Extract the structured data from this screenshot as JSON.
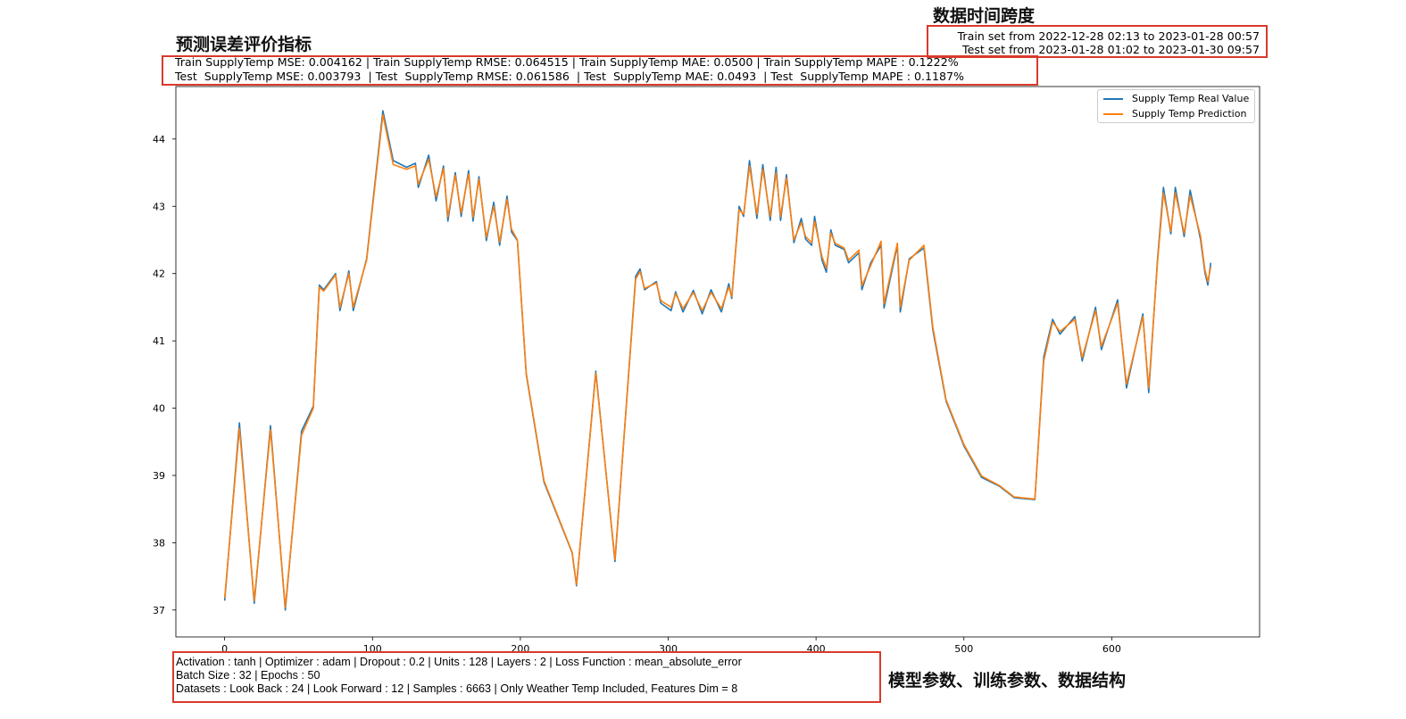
{
  "annotations": {
    "metrics_heading": "预测误差评价指标",
    "timespan_heading": "数据时间跨度",
    "params_heading": "模型参数、训练参数、数据结构"
  },
  "metrics": {
    "train_line": "Train SupplyTemp MSE: 0.004162 | Train SupplyTemp RMSE: 0.064515 | Train SupplyTemp MAE: 0.0500 | Train SupplyTemp MAPE : 0.1222%",
    "test_line": "Test  SupplyTemp MSE: 0.003793  | Test  SupplyTemp RMSE: 0.061586  | Test  SupplyTemp MAE: 0.0493  | Test  SupplyTemp MAPE : 0.1187%"
  },
  "timespan": {
    "train": "Train set from 2022-12-28 02:13 to 2023-01-28 00:57",
    "test": "Test set from 2023-01-28 01:02 to 2023-01-30 09:57"
  },
  "params": {
    "line1": "Activation : tanh | Optimizer : adam | Dropout : 0.2 | Units : 128 | Layers : 2 | Loss Function : mean_absolute_error",
    "line2": "Batch Size : 32 | Epochs : 50",
    "line3": "Datasets : Look Back : 24 | Look Forward : 12 | Samples : 6663 | Only Weather Temp Included, Features Dim = 8"
  },
  "chart_data": {
    "type": "line",
    "title": "",
    "xlabel": "",
    "ylabel": "",
    "xlim": [
      -33,
      700
    ],
    "ylim": [
      36.6,
      44.78
    ],
    "xticks": [
      0,
      100,
      200,
      300,
      400,
      500,
      600
    ],
    "yticks": [
      37,
      38,
      39,
      40,
      41,
      42,
      43,
      44
    ],
    "grid": false,
    "legend_position": "top-right",
    "x": [
      0,
      10,
      20,
      31,
      41,
      52,
      60,
      64,
      67,
      75,
      78,
      84,
      87,
      96,
      107,
      114,
      123,
      129,
      131,
      138,
      143,
      148,
      151,
      156,
      160,
      165,
      168,
      172,
      177,
      182,
      186,
      191,
      194,
      198,
      204,
      216,
      235,
      238,
      251,
      264,
      278,
      281,
      284,
      292,
      295,
      302,
      305,
      310,
      317,
      323,
      329,
      336,
      341,
      343,
      348,
      351,
      355,
      360,
      364,
      369,
      373,
      376,
      380,
      385,
      390,
      393,
      397,
      399,
      404,
      407,
      410,
      413,
      419,
      422,
      429,
      431,
      437,
      444,
      446,
      455,
      457,
      463,
      473,
      479,
      488,
      500,
      512,
      524,
      534,
      548,
      554,
      560,
      565,
      575,
      580,
      589,
      593,
      604,
      610,
      621,
      625,
      631,
      635,
      640,
      643,
      649,
      653,
      660,
      663,
      665,
      667
    ],
    "series": [
      {
        "name": "Supply Temp Real Value",
        "color": "#1f77b4",
        "values": [
          37.14,
          39.78,
          37.1,
          39.74,
          37.0,
          39.66,
          40.03,
          41.83,
          41.76,
          42.0,
          41.45,
          42.04,
          41.45,
          42.22,
          44.42,
          43.68,
          43.58,
          43.64,
          43.28,
          43.76,
          43.08,
          43.6,
          42.78,
          43.5,
          42.85,
          43.53,
          42.78,
          43.44,
          42.49,
          43.06,
          42.42,
          43.15,
          42.62,
          42.49,
          40.5,
          38.9,
          37.85,
          37.36,
          40.55,
          37.72,
          41.96,
          42.07,
          41.76,
          41.88,
          41.56,
          41.45,
          41.73,
          41.43,
          41.75,
          41.4,
          41.76,
          41.43,
          41.85,
          41.63,
          43.0,
          42.85,
          43.68,
          42.82,
          43.62,
          42.79,
          43.58,
          42.79,
          43.47,
          42.46,
          42.82,
          42.51,
          42.42,
          42.85,
          42.2,
          42.02,
          42.65,
          42.42,
          42.36,
          42.16,
          42.31,
          41.76,
          42.16,
          42.42,
          41.49,
          42.42,
          41.43,
          42.22,
          42.38,
          41.16,
          40.1,
          39.44,
          38.97,
          38.84,
          38.67,
          38.64,
          40.76,
          41.32,
          41.1,
          41.36,
          40.7,
          41.5,
          40.87,
          41.61,
          40.3,
          41.4,
          40.23,
          42.22,
          43.28,
          42.59,
          43.28,
          42.55,
          43.24,
          42.51,
          42.02,
          41.83,
          42.16
        ]
      },
      {
        "name": "Supply Temp Prediction",
        "color": "#ff7f0e",
        "values": [
          37.18,
          39.7,
          37.14,
          39.68,
          37.04,
          39.6,
          40.0,
          41.8,
          41.74,
          41.98,
          41.5,
          42.0,
          41.5,
          42.2,
          44.36,
          43.62,
          43.55,
          43.6,
          43.33,
          43.7,
          43.14,
          43.56,
          42.84,
          43.46,
          42.9,
          43.48,
          42.84,
          43.4,
          42.54,
          43.0,
          42.47,
          43.1,
          42.66,
          42.5,
          40.52,
          38.92,
          37.86,
          37.38,
          40.52,
          37.75,
          41.92,
          42.03,
          41.78,
          41.86,
          41.6,
          41.5,
          41.7,
          41.48,
          41.72,
          41.45,
          41.72,
          41.48,
          41.8,
          41.66,
          42.95,
          42.88,
          43.6,
          42.88,
          43.55,
          42.85,
          43.5,
          42.85,
          43.42,
          42.5,
          42.76,
          42.55,
          42.46,
          42.78,
          42.25,
          42.08,
          42.6,
          42.45,
          42.38,
          42.2,
          42.35,
          41.82,
          42.12,
          42.48,
          41.55,
          42.45,
          41.5,
          42.2,
          42.42,
          41.2,
          40.12,
          39.46,
          38.99,
          38.85,
          38.68,
          38.65,
          40.7,
          41.28,
          41.14,
          41.32,
          40.75,
          41.45,
          40.92,
          41.56,
          40.36,
          41.36,
          40.3,
          42.18,
          43.2,
          42.63,
          43.2,
          42.6,
          43.16,
          42.56,
          42.06,
          41.88,
          42.1
        ]
      }
    ]
  }
}
